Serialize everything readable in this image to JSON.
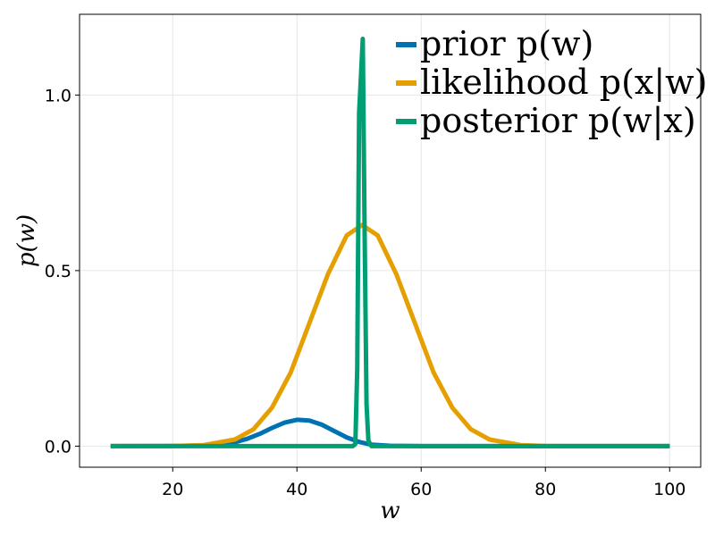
{
  "chart_data": {
    "type": "line",
    "xlabel": "w",
    "ylabel": "p(w)",
    "xlim": [
      5,
      105
    ],
    "ylim": [
      -0.06,
      1.23
    ],
    "xticks": [
      20,
      40,
      60,
      80,
      100
    ],
    "xtick_labels": [
      "20",
      "40",
      "60",
      "80",
      "100"
    ],
    "yticks": [
      0.0,
      0.5,
      1.0
    ],
    "ytick_labels": [
      "0.0",
      "0.5",
      "1.0"
    ],
    "grid": true,
    "legend_position": "top-right",
    "series": [
      {
        "name": "prior p(w)",
        "color": "#0072B2",
        "x": [
          10,
          20,
          25,
          28,
          30,
          32,
          34,
          36,
          38,
          40,
          42,
          44,
          46,
          48,
          50,
          52,
          55,
          60,
          70,
          80,
          100
        ],
        "y": [
          0.0,
          0.0002,
          0.002,
          0.006,
          0.011,
          0.021,
          0.035,
          0.052,
          0.067,
          0.075,
          0.073,
          0.061,
          0.043,
          0.025,
          0.012,
          0.004,
          0.001,
          0.0,
          0.0,
          0.0,
          0.0
        ]
      },
      {
        "name": "likelihood p(x|w)",
        "color": "#E69F00",
        "x": [
          10,
          20,
          25,
          30,
          33,
          36,
          39,
          42,
          45,
          48,
          50.5,
          53,
          56,
          59,
          62,
          65,
          68,
          71,
          76,
          80,
          90,
          100
        ],
        "y": [
          0.0,
          0.0002,
          0.003,
          0.019,
          0.048,
          0.11,
          0.21,
          0.35,
          0.49,
          0.6,
          0.63,
          0.6,
          0.49,
          0.35,
          0.21,
          0.11,
          0.048,
          0.019,
          0.003,
          0.0004,
          0.0,
          0.0
        ]
      },
      {
        "name": "posterior p(w|x)",
        "color": "#009E73",
        "x": [
          10,
          40,
          49,
          49.4,
          49.7,
          50,
          50.3,
          50.6,
          50.9,
          51.2,
          51.5,
          52,
          60,
          100
        ],
        "y": [
          0.0,
          0.0,
          0.0,
          0.006,
          0.22,
          0.95,
          1.05,
          1.16,
          0.6,
          0.12,
          0.015,
          0.0,
          0.0,
          0.0
        ]
      }
    ]
  }
}
